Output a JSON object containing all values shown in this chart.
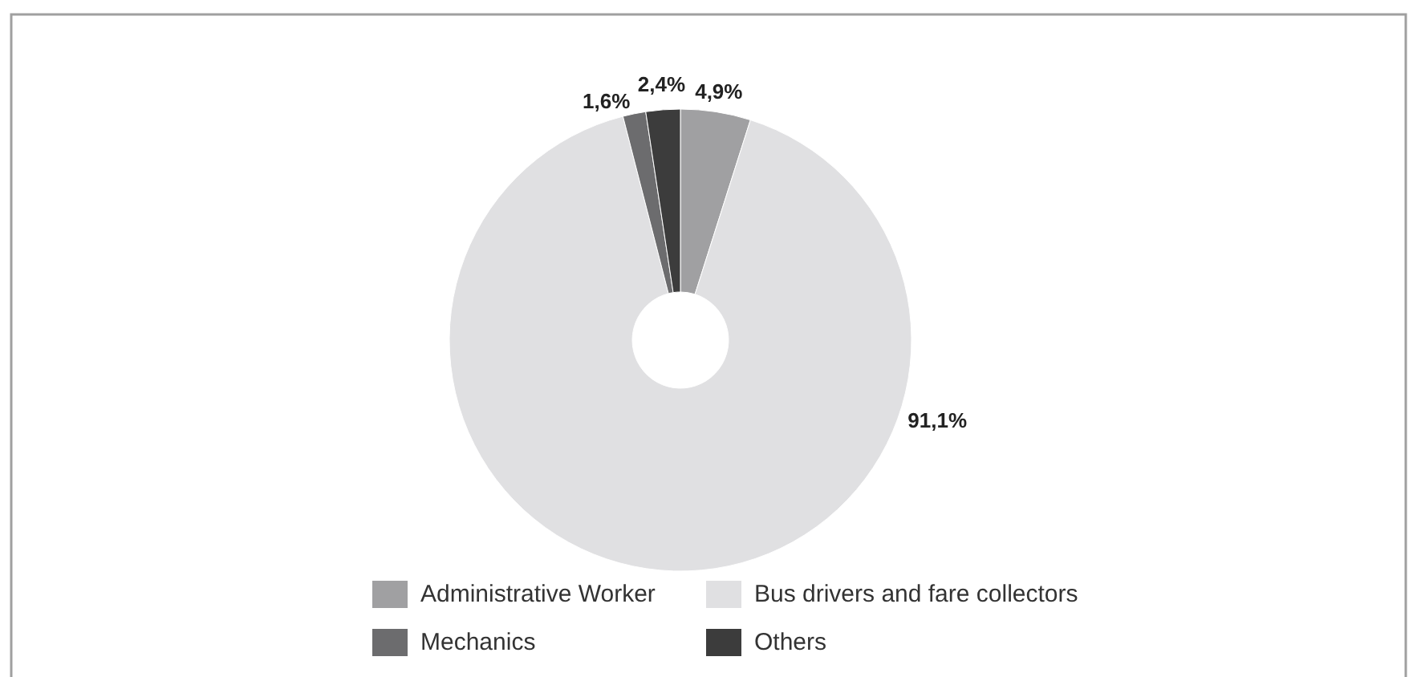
{
  "chart_data": {
    "type": "donut",
    "categories": [
      "Administrative Worker",
      "Bus drivers and fare collectors",
      "Mechanics",
      "Others"
    ],
    "values": [
      4.9,
      91.1,
      1.6,
      2.4
    ],
    "colors": [
      "#a0a0a2",
      "#e0e0e2",
      "#6c6c6e",
      "#3c3c3c"
    ],
    "value_labels": [
      "4,9%",
      "91,1%",
      "1,6%",
      "2,4%"
    ],
    "legend": "bottom"
  }
}
